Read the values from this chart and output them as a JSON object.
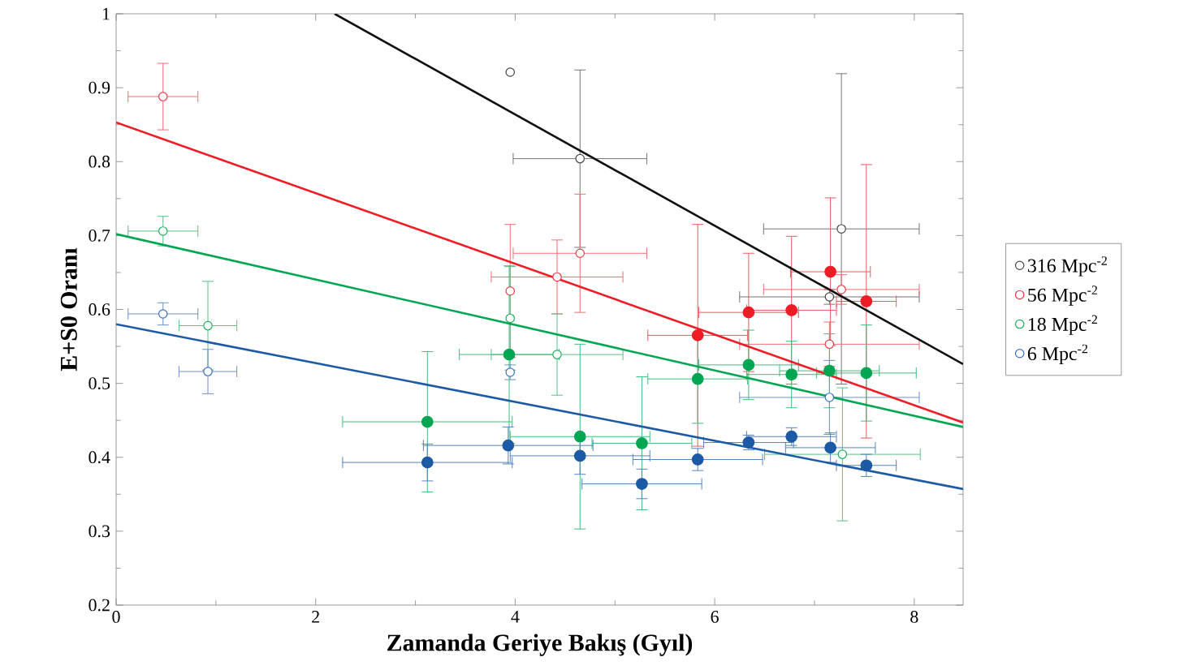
{
  "chart_data": {
    "type": "scatter",
    "xlabel": "Zamanda Geriye Bakış (Gyıl)",
    "ylabel": "E+S0 Oranı",
    "xlim": [
      0,
      8.49
    ],
    "ylim": [
      0.2,
      1
    ],
    "xticks": [
      0,
      2,
      4,
      6,
      8
    ],
    "yticks": [
      0.2,
      0.3,
      0.4,
      0.5,
      0.6,
      0.7,
      0.8,
      0.9,
      1
    ],
    "legend": "right",
    "grid": false,
    "series": [
      {
        "name": "316 Mpc$^{-2}$",
        "marker": "circle",
        "color": "#444444",
        "x": [
          3.95,
          4.65,
          7.27,
          7.15
        ],
        "values": [
          0.921,
          0.804,
          0.709,
          0.617
        ],
        "errors": [
          null,
          0.12,
          0.21,
          0.01
        ],
        "xerrors": [
          null,
          0.67,
          0.78,
          0.9
        ]
      },
      {
        "name": "56 Mpc$^{-2}$",
        "marker": "circle",
        "color": "#ee3a43",
        "x": [
          0.47,
          3.95,
          4.42,
          4.65,
          7.15,
          7.27
        ],
        "values": [
          0.888,
          0.625,
          0.644,
          0.676,
          0.553,
          0.627
        ],
        "errors": [
          0.045,
          0.09,
          0.05,
          0.08,
          0.03,
          0.02
        ],
        "xerrors": [
          0.35,
          null,
          0.66,
          0.67,
          0.9,
          0.78
        ]
      },
      {
        "name": "18 Mpc$^{-2}$",
        "marker": "circle",
        "color": "#1fae5c",
        "x": [
          0.47,
          0.92,
          3.95,
          4.42,
          7.28
        ],
        "values": [
          0.706,
          0.578,
          0.588,
          0.539,
          0.404
        ],
        "errors": [
          0.02,
          0.06,
          0.07,
          0.055,
          0.09
        ],
        "xerrors": [
          0.35,
          0.29,
          null,
          0.66,
          0.78
        ]
      },
      {
        "name": "6 Mpc$^{-2}$",
        "marker": "circle",
        "color": "#3a6db8",
        "x": [
          0.47,
          0.92,
          3.95,
          7.15
        ],
        "values": [
          0.594,
          0.516,
          0.515,
          0.481
        ],
        "errors": [
          0.015,
          0.03,
          0.01,
          0.05
        ],
        "xerrors": [
          0.35,
          0.29,
          null,
          0.9
        ]
      },
      {
        "marker": "circle",
        "color": "#ee1c25",
        "x": [
          5.83,
          6.34,
          6.77,
          7.16,
          7.52
        ],
        "values": [
          0.565,
          0.596,
          0.599,
          0.651,
          0.611
        ],
        "errors": [
          0.15,
          0.08,
          0.1,
          0.1,
          0.185
        ],
        "xerrors": [
          0.5,
          0.5,
          0.45,
          0.4,
          0.3
        ]
      },
      {
        "marker": "circle",
        "color": "#00a651",
        "x": [
          3.12,
          3.94,
          4.65,
          5.27,
          5.83,
          6.34,
          6.77,
          7.15,
          7.52
        ],
        "values": [
          0.448,
          0.539,
          0.428,
          0.419,
          0.506,
          0.525,
          0.512,
          0.517,
          0.514
        ],
        "errors": [
          0.095,
          0.12,
          0.125,
          0.09,
          0.06,
          0.047,
          0.045,
          0.05,
          0.065
        ],
        "xerrors": [
          0.85,
          0.5,
          0.7,
          0.5,
          0.5,
          0.5,
          0.45,
          0.5,
          0.5
        ]
      },
      {
        "marker": "circle",
        "color": "#1c5aa6",
        "x": [
          3.12,
          3.93,
          4.65,
          5.27,
          5.83,
          6.34,
          6.77,
          7.16,
          7.52
        ],
        "values": [
          0.393,
          0.416,
          0.402,
          0.364,
          0.397,
          0.42,
          0.428,
          0.413,
          0.389
        ],
        "errors": [
          0.025,
          0.025,
          0.025,
          0.02,
          0.015,
          0.01,
          0.012,
          0.02,
          0.015
        ],
        "xerrors": [
          0.85,
          0.85,
          0.7,
          0.6,
          0.65,
          0.45,
          0.45,
          0.45,
          0.3
        ]
      },
      {
        "type": "line",
        "marker": "none",
        "color": "#111111",
        "x": [
          2.19,
          8.49
        ],
        "values": [
          1.0,
          0.526
        ]
      },
      {
        "type": "line",
        "marker": "none",
        "color": "#ee1c25",
        "x": [
          0,
          8.49
        ],
        "values": [
          0.853,
          0.447
        ]
      },
      {
        "type": "line",
        "marker": "none",
        "color": "#00a651",
        "x": [
          0,
          8.49
        ],
        "values": [
          0.702,
          0.441
        ]
      },
      {
        "type": "line",
        "marker": "none",
        "color": "#1c5aa6",
        "x": [
          0,
          8.49
        ],
        "values": [
          0.58,
          0.357
        ]
      }
    ]
  }
}
